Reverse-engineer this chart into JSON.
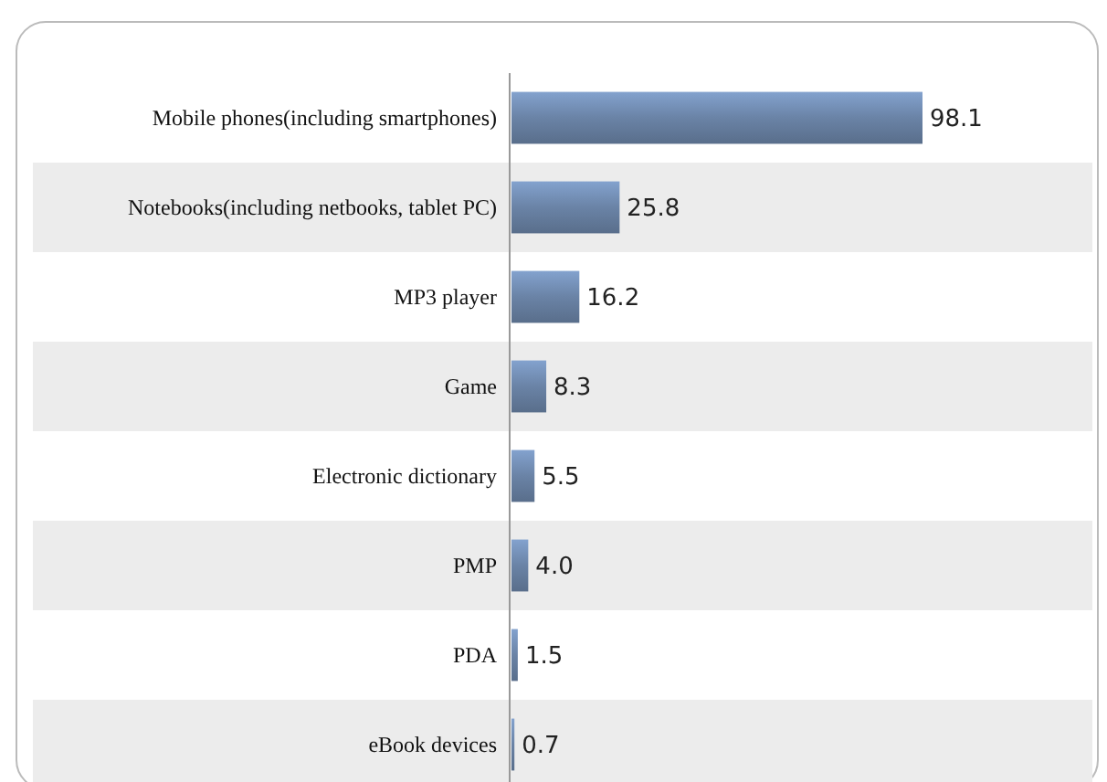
{
  "chart_data": {
    "type": "bar",
    "orientation": "horizontal",
    "categories": [
      "Mobile phones(including smartphones)",
      "Notebooks(including netbooks, tablet PC)",
      "MP3 player",
      "Game",
      "Electronic dictionary",
      "PMP",
      "PDA",
      "eBook devices"
    ],
    "values": [
      98.1,
      25.8,
      16.2,
      8.3,
      5.5,
      4.0,
      1.5,
      0.7
    ],
    "value_labels": [
      "98.1",
      "25.8",
      "16.2",
      "8.3",
      "5.5",
      "4.0",
      "1.5",
      "0.7"
    ],
    "color": "#6a83a6"
  }
}
